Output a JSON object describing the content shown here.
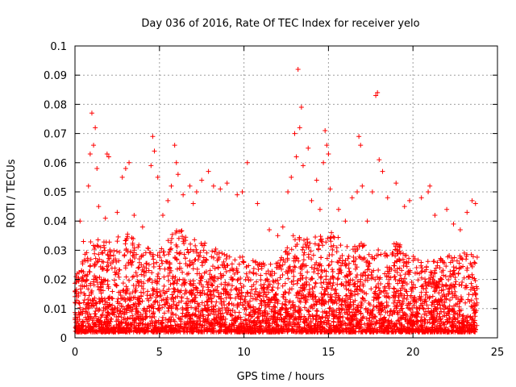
{
  "chart_data": {
    "type": "scatter",
    "title": "Day 036 of 2016, Rate Of TEC Index for receiver yelo",
    "xlabel": "GPS time / hours",
    "ylabel": "ROTI / TECUs",
    "xlim": [
      0,
      25
    ],
    "ylim": [
      0,
      0.1
    ],
    "x_ticks": [
      0,
      5,
      10,
      15,
      20,
      25
    ],
    "x_tick_labels": [
      "0",
      "5",
      "10",
      "15",
      "20",
      "25"
    ],
    "y_ticks": [
      0,
      0.01,
      0.02,
      0.03,
      0.04,
      0.05,
      0.06,
      0.07,
      0.08,
      0.09,
      0.1
    ],
    "y_tick_labels": [
      "0",
      "0.01",
      "0.02",
      "0.03",
      "0.04",
      "0.05",
      "0.06",
      "0.07",
      "0.08",
      "0.09",
      "0.1"
    ],
    "grid": true,
    "marker": "+",
    "series": [
      {
        "name": "ROTI",
        "color": "#ff0000",
        "points": [
          [
            0.05,
            0.008
          ],
          [
            0.2,
            0.012
          ],
          [
            0.3,
            0.04
          ],
          [
            0.5,
            0.033
          ],
          [
            0.8,
            0.052
          ],
          [
            0.9,
            0.063
          ],
          [
            1.0,
            0.077
          ],
          [
            1.1,
            0.066
          ],
          [
            1.2,
            0.072
          ],
          [
            1.3,
            0.058
          ],
          [
            1.4,
            0.045
          ],
          [
            1.8,
            0.041
          ],
          [
            1.9,
            0.063
          ],
          [
            2.0,
            0.062
          ],
          [
            2.5,
            0.043
          ],
          [
            2.8,
            0.055
          ],
          [
            3.0,
            0.058
          ],
          [
            3.2,
            0.06
          ],
          [
            3.5,
            0.042
          ],
          [
            4.0,
            0.038
          ],
          [
            4.5,
            0.059
          ],
          [
            4.6,
            0.069
          ],
          [
            4.7,
            0.064
          ],
          [
            4.9,
            0.055
          ],
          [
            5.2,
            0.042
          ],
          [
            5.5,
            0.047
          ],
          [
            5.7,
            0.052
          ],
          [
            5.9,
            0.066
          ],
          [
            6.0,
            0.06
          ],
          [
            6.1,
            0.056
          ],
          [
            6.4,
            0.049
          ],
          [
            6.8,
            0.052
          ],
          [
            7.0,
            0.046
          ],
          [
            7.2,
            0.05
          ],
          [
            7.5,
            0.054
          ],
          [
            7.9,
            0.057
          ],
          [
            8.2,
            0.052
          ],
          [
            8.6,
            0.051
          ],
          [
            9.0,
            0.053
          ],
          [
            9.6,
            0.049
          ],
          [
            9.9,
            0.05
          ],
          [
            10.2,
            0.06
          ],
          [
            10.8,
            0.046
          ],
          [
            11.5,
            0.037
          ],
          [
            12.0,
            0.035
          ],
          [
            12.3,
            0.038
          ],
          [
            12.6,
            0.05
          ],
          [
            12.8,
            0.055
          ],
          [
            13.0,
            0.07
          ],
          [
            13.1,
            0.062
          ],
          [
            13.2,
            0.092
          ],
          [
            13.3,
            0.072
          ],
          [
            13.4,
            0.079
          ],
          [
            13.5,
            0.059
          ],
          [
            13.8,
            0.065
          ],
          [
            14.0,
            0.047
          ],
          [
            14.3,
            0.054
          ],
          [
            14.5,
            0.044
          ],
          [
            14.7,
            0.06
          ],
          [
            14.8,
            0.071
          ],
          [
            14.9,
            0.066
          ],
          [
            15.0,
            0.063
          ],
          [
            15.1,
            0.051
          ],
          [
            15.6,
            0.044
          ],
          [
            16.0,
            0.04
          ],
          [
            16.4,
            0.048
          ],
          [
            16.7,
            0.05
          ],
          [
            16.8,
            0.069
          ],
          [
            16.9,
            0.066
          ],
          [
            17.0,
            0.052
          ],
          [
            17.3,
            0.04
          ],
          [
            17.6,
            0.05
          ],
          [
            17.8,
            0.083
          ],
          [
            17.9,
            0.084
          ],
          [
            18.0,
            0.061
          ],
          [
            18.2,
            0.057
          ],
          [
            18.5,
            0.048
          ],
          [
            19.0,
            0.053
          ],
          [
            19.5,
            0.045
          ],
          [
            19.8,
            0.047
          ],
          [
            20.5,
            0.048
          ],
          [
            20.9,
            0.05
          ],
          [
            21.0,
            0.052
          ],
          [
            21.3,
            0.042
          ],
          [
            22.0,
            0.044
          ],
          [
            22.4,
            0.039
          ],
          [
            22.8,
            0.037
          ],
          [
            23.2,
            0.043
          ],
          [
            23.5,
            0.047
          ],
          [
            23.7,
            0.046
          ]
        ],
        "cloud_envelope": [
          [
            0,
            0.02
          ],
          [
            1,
            0.032
          ],
          [
            2,
            0.031
          ],
          [
            3,
            0.034
          ],
          [
            4,
            0.03
          ],
          [
            5,
            0.028
          ],
          [
            6,
            0.036
          ],
          [
            7,
            0.032
          ],
          [
            8,
            0.03
          ],
          [
            9,
            0.028
          ],
          [
            10,
            0.026
          ],
          [
            11,
            0.024
          ],
          [
            12,
            0.024
          ],
          [
            13,
            0.034
          ],
          [
            14,
            0.032
          ],
          [
            15,
            0.036
          ],
          [
            16,
            0.03
          ],
          [
            17,
            0.031
          ],
          [
            18,
            0.028
          ],
          [
            19,
            0.032
          ],
          [
            20,
            0.026
          ],
          [
            21,
            0.024
          ],
          [
            22,
            0.026
          ],
          [
            23,
            0.028
          ],
          [
            23.8,
            0.026
          ]
        ]
      }
    ]
  }
}
